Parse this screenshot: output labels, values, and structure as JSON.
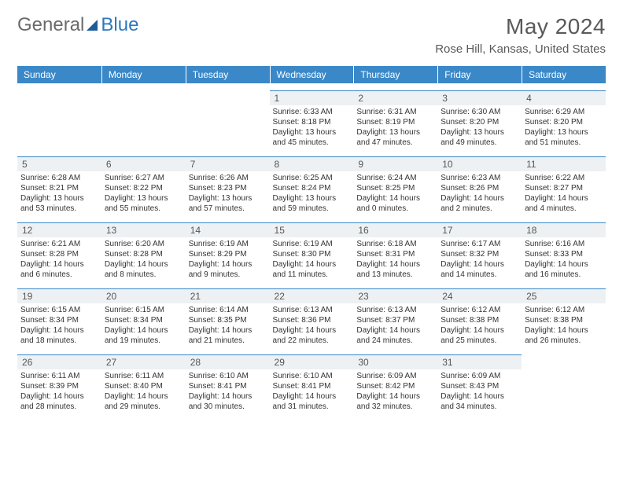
{
  "brand": {
    "word1": "General",
    "word2": "Blue",
    "gray": "#6b6b6b",
    "blue": "#2b79bf",
    "dark": "#1f5d99"
  },
  "title": "May 2024",
  "location": "Rose Hill, Kansas, United States",
  "header_bg": "#3a88c8",
  "daynum_bg": "#eef1f3",
  "days": [
    "Sunday",
    "Monday",
    "Tuesday",
    "Wednesday",
    "Thursday",
    "Friday",
    "Saturday"
  ],
  "weeks": [
    [
      null,
      null,
      null,
      {
        "n": "1",
        "sr": "6:33 AM",
        "ss": "8:18 PM",
        "dl": "13 hours and 45 minutes."
      },
      {
        "n": "2",
        "sr": "6:31 AM",
        "ss": "8:19 PM",
        "dl": "13 hours and 47 minutes."
      },
      {
        "n": "3",
        "sr": "6:30 AM",
        "ss": "8:20 PM",
        "dl": "13 hours and 49 minutes."
      },
      {
        "n": "4",
        "sr": "6:29 AM",
        "ss": "8:20 PM",
        "dl": "13 hours and 51 minutes."
      }
    ],
    [
      {
        "n": "5",
        "sr": "6:28 AM",
        "ss": "8:21 PM",
        "dl": "13 hours and 53 minutes."
      },
      {
        "n": "6",
        "sr": "6:27 AM",
        "ss": "8:22 PM",
        "dl": "13 hours and 55 minutes."
      },
      {
        "n": "7",
        "sr": "6:26 AM",
        "ss": "8:23 PM",
        "dl": "13 hours and 57 minutes."
      },
      {
        "n": "8",
        "sr": "6:25 AM",
        "ss": "8:24 PM",
        "dl": "13 hours and 59 minutes."
      },
      {
        "n": "9",
        "sr": "6:24 AM",
        "ss": "8:25 PM",
        "dl": "14 hours and 0 minutes."
      },
      {
        "n": "10",
        "sr": "6:23 AM",
        "ss": "8:26 PM",
        "dl": "14 hours and 2 minutes."
      },
      {
        "n": "11",
        "sr": "6:22 AM",
        "ss": "8:27 PM",
        "dl": "14 hours and 4 minutes."
      }
    ],
    [
      {
        "n": "12",
        "sr": "6:21 AM",
        "ss": "8:28 PM",
        "dl": "14 hours and 6 minutes."
      },
      {
        "n": "13",
        "sr": "6:20 AM",
        "ss": "8:28 PM",
        "dl": "14 hours and 8 minutes."
      },
      {
        "n": "14",
        "sr": "6:19 AM",
        "ss": "8:29 PM",
        "dl": "14 hours and 9 minutes."
      },
      {
        "n": "15",
        "sr": "6:19 AM",
        "ss": "8:30 PM",
        "dl": "14 hours and 11 minutes."
      },
      {
        "n": "16",
        "sr": "6:18 AM",
        "ss": "8:31 PM",
        "dl": "14 hours and 13 minutes."
      },
      {
        "n": "17",
        "sr": "6:17 AM",
        "ss": "8:32 PM",
        "dl": "14 hours and 14 minutes."
      },
      {
        "n": "18",
        "sr": "6:16 AM",
        "ss": "8:33 PM",
        "dl": "14 hours and 16 minutes."
      }
    ],
    [
      {
        "n": "19",
        "sr": "6:15 AM",
        "ss": "8:34 PM",
        "dl": "14 hours and 18 minutes."
      },
      {
        "n": "20",
        "sr": "6:15 AM",
        "ss": "8:34 PM",
        "dl": "14 hours and 19 minutes."
      },
      {
        "n": "21",
        "sr": "6:14 AM",
        "ss": "8:35 PM",
        "dl": "14 hours and 21 minutes."
      },
      {
        "n": "22",
        "sr": "6:13 AM",
        "ss": "8:36 PM",
        "dl": "14 hours and 22 minutes."
      },
      {
        "n": "23",
        "sr": "6:13 AM",
        "ss": "8:37 PM",
        "dl": "14 hours and 24 minutes."
      },
      {
        "n": "24",
        "sr": "6:12 AM",
        "ss": "8:38 PM",
        "dl": "14 hours and 25 minutes."
      },
      {
        "n": "25",
        "sr": "6:12 AM",
        "ss": "8:38 PM",
        "dl": "14 hours and 26 minutes."
      }
    ],
    [
      {
        "n": "26",
        "sr": "6:11 AM",
        "ss": "8:39 PM",
        "dl": "14 hours and 28 minutes."
      },
      {
        "n": "27",
        "sr": "6:11 AM",
        "ss": "8:40 PM",
        "dl": "14 hours and 29 minutes."
      },
      {
        "n": "28",
        "sr": "6:10 AM",
        "ss": "8:41 PM",
        "dl": "14 hours and 30 minutes."
      },
      {
        "n": "29",
        "sr": "6:10 AM",
        "ss": "8:41 PM",
        "dl": "14 hours and 31 minutes."
      },
      {
        "n": "30",
        "sr": "6:09 AM",
        "ss": "8:42 PM",
        "dl": "14 hours and 32 minutes."
      },
      {
        "n": "31",
        "sr": "6:09 AM",
        "ss": "8:43 PM",
        "dl": "14 hours and 34 minutes."
      },
      null
    ]
  ],
  "labels": {
    "sunrise": "Sunrise:",
    "sunset": "Sunset:",
    "daylight": "Daylight:"
  }
}
